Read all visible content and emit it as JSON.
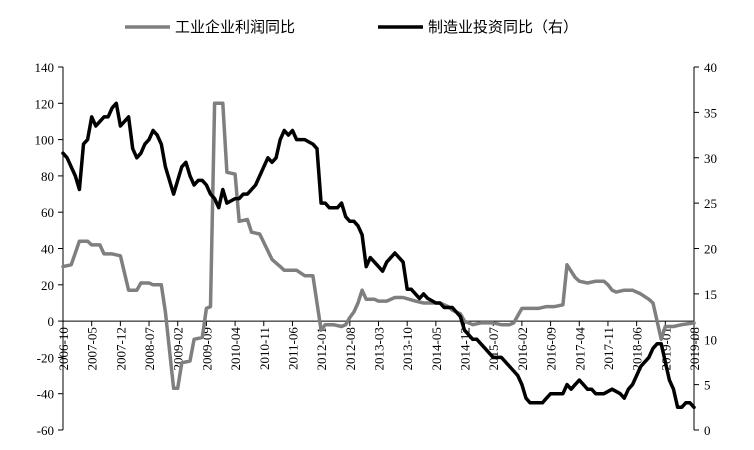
{
  "chart_data": {
    "type": "line",
    "legend": {
      "placement": "top",
      "entries": [
        "工业企业利润同比",
        "制造业投资同比（右）"
      ]
    },
    "x_tick_labels": [
      "2006-10",
      "2007-05",
      "2007-12",
      "2008-07",
      "2009-02",
      "2009-09",
      "2010-04",
      "2010-11",
      "2011-06",
      "2012-01",
      "2012-08",
      "2013-03",
      "2013-10",
      "2014-05",
      "2014-12",
      "2015-07",
      "2016-02",
      "2016-09",
      "2017-04",
      "2017-11",
      "2018-06",
      "2019-01",
      "2019-08"
    ],
    "y_left": {
      "min": -60,
      "max": 140,
      "step": 20,
      "ticks": [
        "140",
        "120",
        "100",
        "80",
        "60",
        "40",
        "20",
        "0",
        "-20",
        "-40",
        "-60"
      ]
    },
    "y_right": {
      "min": 0,
      "max": 40,
      "step": 5,
      "ticks": [
        "40",
        "35",
        "30",
        "25",
        "20",
        "15",
        "10",
        "5",
        "0"
      ]
    },
    "grid": false,
    "colors": {
      "profit": "#7f7f7f",
      "invest": "#000000"
    },
    "series": [
      {
        "name": "工业企业利润同比",
        "axis": "left",
        "points": [
          [
            "2006-10",
            30
          ],
          [
            "2006-12",
            31
          ],
          [
            "2007-02",
            44
          ],
          [
            "2007-04",
            44
          ],
          [
            "2007-05",
            42
          ],
          [
            "2007-07",
            42
          ],
          [
            "2007-08",
            37
          ],
          [
            "2007-10",
            37
          ],
          [
            "2007-12",
            36
          ],
          [
            "2008-02",
            17
          ],
          [
            "2008-04",
            17
          ],
          [
            "2008-05",
            21
          ],
          [
            "2008-07",
            21
          ],
          [
            "2008-08",
            20
          ],
          [
            "2008-10",
            20
          ],
          [
            "2008-11",
            5
          ],
          [
            "2009-01",
            -37
          ],
          [
            "2009-02",
            -37
          ],
          [
            "2009-03",
            -23
          ],
          [
            "2009-05",
            -22
          ],
          [
            "2009-06",
            -10
          ],
          [
            "2009-08",
            -9
          ],
          [
            "2009-09",
            7
          ],
          [
            "2009-10",
            8
          ],
          [
            "2009-11",
            120
          ],
          [
            "2010-01",
            120
          ],
          [
            "2010-02",
            82
          ],
          [
            "2010-04",
            81
          ],
          [
            "2010-05",
            55
          ],
          [
            "2010-07",
            56
          ],
          [
            "2010-08",
            49
          ],
          [
            "2010-10",
            48
          ],
          [
            "2011-01",
            34
          ],
          [
            "2011-03",
            30
          ],
          [
            "2011-04",
            28
          ],
          [
            "2011-07",
            28
          ],
          [
            "2011-09",
            25
          ],
          [
            "2011-11",
            25
          ],
          [
            "2012-01",
            -5
          ],
          [
            "2012-02",
            -2
          ],
          [
            "2012-04",
            -2
          ],
          [
            "2012-06",
            -3
          ],
          [
            "2012-07",
            -2
          ],
          [
            "2012-08",
            2
          ],
          [
            "2012-09",
            5
          ],
          [
            "2012-10",
            10
          ],
          [
            "2012-11",
            17
          ],
          [
            "2012-12",
            12
          ],
          [
            "2013-02",
            12
          ],
          [
            "2013-03",
            11
          ],
          [
            "2013-05",
            11
          ],
          [
            "2013-07",
            13
          ],
          [
            "2013-09",
            13
          ],
          [
            "2013-12",
            11
          ],
          [
            "2014-02",
            10
          ],
          [
            "2014-04",
            10
          ],
          [
            "2014-06",
            10
          ],
          [
            "2014-08",
            8
          ],
          [
            "2014-09",
            6
          ],
          [
            "2014-11",
            4
          ],
          [
            "2014-12",
            0
          ],
          [
            "2015-02",
            -2
          ],
          [
            "2015-04",
            -1
          ],
          [
            "2015-07",
            -1
          ],
          [
            "2015-09",
            -2
          ],
          [
            "2015-11",
            -2
          ],
          [
            "2015-12",
            -1
          ],
          [
            "2016-02",
            7
          ],
          [
            "2016-04",
            7
          ],
          [
            "2016-06",
            7
          ],
          [
            "2016-08",
            8
          ],
          [
            "2016-10",
            8
          ],
          [
            "2016-12",
            9
          ],
          [
            "2017-01",
            31
          ],
          [
            "2017-03",
            24
          ],
          [
            "2017-04",
            22
          ],
          [
            "2017-06",
            21
          ],
          [
            "2017-08",
            22
          ],
          [
            "2017-10",
            22
          ],
          [
            "2017-11",
            20
          ],
          [
            "2017-12",
            17
          ],
          [
            "2018-01",
            16
          ],
          [
            "2018-03",
            17
          ],
          [
            "2018-04",
            17
          ],
          [
            "2018-05",
            17
          ],
          [
            "2018-07",
            15
          ],
          [
            "2018-09",
            12
          ],
          [
            "2018-10",
            10
          ],
          [
            "2018-12",
            -10
          ],
          [
            "2019-01",
            -3
          ],
          [
            "2019-03",
            -3
          ],
          [
            "2019-05",
            -2
          ],
          [
            "2019-08",
            -1
          ]
        ]
      },
      {
        "name": "制造业投资同比（右）",
        "axis": "right",
        "points": [
          [
            "2006-10",
            30.5
          ],
          [
            "2006-11",
            30
          ],
          [
            "2007-01",
            28
          ],
          [
            "2007-02",
            26.5
          ],
          [
            "2007-03",
            31.5
          ],
          [
            "2007-04",
            32
          ],
          [
            "2007-05",
            34.5
          ],
          [
            "2007-06",
            33.5
          ],
          [
            "2007-07",
            34
          ],
          [
            "2007-08",
            34.5
          ],
          [
            "2007-09",
            34.5
          ],
          [
            "2007-10",
            35.5
          ],
          [
            "2007-11",
            36
          ],
          [
            "2007-12",
            33.5
          ],
          [
            "2008-01",
            34
          ],
          [
            "2008-02",
            34.5
          ],
          [
            "2008-03",
            31
          ],
          [
            "2008-04",
            30
          ],
          [
            "2008-05",
            30.5
          ],
          [
            "2008-06",
            31.5
          ],
          [
            "2008-07",
            32
          ],
          [
            "2008-08",
            33
          ],
          [
            "2008-09",
            32.5
          ],
          [
            "2008-10",
            31.5
          ],
          [
            "2008-11",
            29
          ],
          [
            "2009-01",
            26
          ],
          [
            "2009-02",
            27.5
          ],
          [
            "2009-03",
            29
          ],
          [
            "2009-04",
            29.5
          ],
          [
            "2009-05",
            28
          ],
          [
            "2009-06",
            27
          ],
          [
            "2009-07",
            27.5
          ],
          [
            "2009-08",
            27.5
          ],
          [
            "2009-09",
            27
          ],
          [
            "2009-10",
            26
          ],
          [
            "2009-11",
            25.5
          ],
          [
            "2009-12",
            24.5
          ],
          [
            "2010-01",
            26.5
          ],
          [
            "2010-02",
            25
          ],
          [
            "2010-04",
            25.5
          ],
          [
            "2010-05",
            25.5
          ],
          [
            "2010-06",
            26
          ],
          [
            "2010-07",
            26
          ],
          [
            "2010-09",
            27
          ],
          [
            "2010-10",
            28
          ],
          [
            "2010-11",
            29
          ],
          [
            "2010-12",
            30
          ],
          [
            "2011-01",
            29.5
          ],
          [
            "2011-02",
            30
          ],
          [
            "2011-03",
            32
          ],
          [
            "2011-04",
            33
          ],
          [
            "2011-05",
            32.5
          ],
          [
            "2011-06",
            33
          ],
          [
            "2011-07",
            32
          ],
          [
            "2011-08",
            32
          ],
          [
            "2011-09",
            32
          ],
          [
            "2011-11",
            31.5
          ],
          [
            "2011-12",
            31
          ],
          [
            "2012-01",
            25
          ],
          [
            "2012-02",
            25
          ],
          [
            "2012-03",
            24.5
          ],
          [
            "2012-05",
            24.5
          ],
          [
            "2012-06",
            25
          ],
          [
            "2012-07",
            23.5
          ],
          [
            "2012-08",
            23
          ],
          [
            "2012-09",
            23
          ],
          [
            "2012-10",
            22.5
          ],
          [
            "2012-11",
            21.5
          ],
          [
            "2012-12",
            18
          ],
          [
            "2013-01",
            19
          ],
          [
            "2013-02",
            18.5
          ],
          [
            "2013-03",
            18
          ],
          [
            "2013-04",
            17.5
          ],
          [
            "2013-05",
            18.5
          ],
          [
            "2013-06",
            19
          ],
          [
            "2013-07",
            19.5
          ],
          [
            "2013-08",
            19
          ],
          [
            "2013-09",
            18.5
          ],
          [
            "2013-10",
            15.5
          ],
          [
            "2013-11",
            15.5
          ],
          [
            "2014-01",
            14.5
          ],
          [
            "2014-02",
            15
          ],
          [
            "2014-03",
            14.5
          ],
          [
            "2014-05",
            14
          ],
          [
            "2014-06",
            14
          ],
          [
            "2014-07",
            13.5
          ],
          [
            "2014-08",
            13.5
          ],
          [
            "2014-09",
            13.5
          ],
          [
            "2014-11",
            12.5
          ],
          [
            "2014-12",
            11
          ],
          [
            "2015-01",
            10.5
          ],
          [
            "2015-02",
            10
          ],
          [
            "2015-03",
            10
          ],
          [
            "2015-04",
            9.5
          ],
          [
            "2015-05",
            9
          ],
          [
            "2015-06",
            8.5
          ],
          [
            "2015-07",
            8
          ],
          [
            "2015-09",
            8
          ],
          [
            "2015-10",
            7.5
          ],
          [
            "2015-11",
            7
          ],
          [
            "2015-12",
            6.5
          ],
          [
            "2016-01",
            6
          ],
          [
            "2016-02",
            5
          ],
          [
            "2016-03",
            3.5
          ],
          [
            "2016-04",
            3
          ],
          [
            "2016-05",
            3
          ],
          [
            "2016-06",
            3
          ],
          [
            "2016-07",
            3
          ],
          [
            "2016-08",
            3.5
          ],
          [
            "2016-09",
            4
          ],
          [
            "2016-10",
            4
          ],
          [
            "2016-12",
            4
          ],
          [
            "2017-01",
            5
          ],
          [
            "2017-02",
            4.5
          ],
          [
            "2017-03",
            5
          ],
          [
            "2017-04",
            5.5
          ],
          [
            "2017-05",
            5
          ],
          [
            "2017-06",
            4.5
          ],
          [
            "2017-07",
            4.5
          ],
          [
            "2017-08",
            4
          ],
          [
            "2017-09",
            4
          ],
          [
            "2017-10",
            4
          ],
          [
            "2017-12",
            4.5
          ],
          [
            "2018-02",
            4
          ],
          [
            "2018-03",
            3.5
          ],
          [
            "2018-04",
            4.5
          ],
          [
            "2018-05",
            5
          ],
          [
            "2018-06",
            6
          ],
          [
            "2018-07",
            7
          ],
          [
            "2018-08",
            7.5
          ],
          [
            "2018-09",
            8
          ],
          [
            "2018-10",
            9
          ],
          [
            "2018-11",
            9.5
          ],
          [
            "2018-12",
            9.5
          ],
          [
            "2019-01",
            7.5
          ],
          [
            "2019-02",
            5.5
          ],
          [
            "2019-03",
            4.5
          ],
          [
            "2019-04",
            2.5
          ],
          [
            "2019-05",
            2.5
          ],
          [
            "2019-06",
            3
          ],
          [
            "2019-07",
            3
          ],
          [
            "2019-08",
            2.5
          ]
        ]
      }
    ]
  }
}
